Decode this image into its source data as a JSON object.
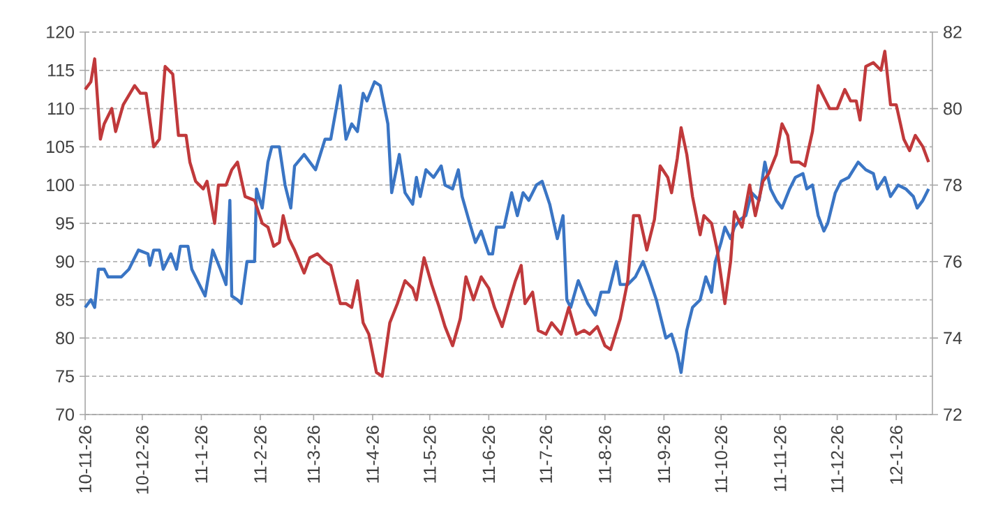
{
  "chart_data": {
    "type": "line",
    "grid": "y",
    "line_style": "solid",
    "xlim": [
      "2010-11-26",
      "2012-02-14"
    ],
    "xticks": [
      {
        "value": "2010-11-26",
        "label": "10-11-26"
      },
      {
        "value": "2010-12-26",
        "label": "10-12-26"
      },
      {
        "value": "2011-01-26",
        "label": "11-1-26"
      },
      {
        "value": "2011-02-26",
        "label": "11-2-26"
      },
      {
        "value": "2011-03-26",
        "label": "11-3-26"
      },
      {
        "value": "2011-04-26",
        "label": "11-4-26"
      },
      {
        "value": "2011-05-26",
        "label": "11-5-26"
      },
      {
        "value": "2011-06-26",
        "label": "11-6-26"
      },
      {
        "value": "2011-07-26",
        "label": "11-7-26"
      },
      {
        "value": "2011-08-26",
        "label": "11-8-26"
      },
      {
        "value": "2011-09-26",
        "label": "11-9-26"
      },
      {
        "value": "2011-10-26",
        "label": "11-10-26"
      },
      {
        "value": "2011-11-26",
        "label": "11-11-26"
      },
      {
        "value": "2011-12-26",
        "label": "11-12-26"
      },
      {
        "value": "2012-01-26",
        "label": "12-1-26"
      }
    ],
    "ylim": [
      70,
      120
    ],
    "yticks": [
      70,
      75,
      80,
      85,
      90,
      95,
      100,
      105,
      110,
      115,
      120
    ],
    "y2lim": [
      72,
      82
    ],
    "y2ticks": [
      72,
      74,
      76,
      78,
      80,
      82
    ],
    "series": [
      {
        "color": "#3a75c4",
        "x": [
          "2010-11-26",
          "2010-11-29",
          "2010-12-01",
          "2010-12-03",
          "2010-12-06",
          "2010-12-08",
          "2010-12-15",
          "2010-12-19",
          "2010-12-24",
          "2010-12-29",
          "2010-12-30",
          "2011-01-01",
          "2011-01-04",
          "2011-01-06",
          "2011-01-10",
          "2011-01-13",
          "2011-01-15",
          "2011-01-19",
          "2011-01-21",
          "2011-01-25",
          "2011-01-28",
          "2011-02-01",
          "2011-02-05",
          "2011-02-08",
          "2011-02-10",
          "2011-02-11",
          "2011-02-14",
          "2011-02-16",
          "2011-02-19",
          "2011-02-23",
          "2011-02-24",
          "2011-02-27",
          "2011-03-02",
          "2011-03-04",
          "2011-03-08",
          "2011-03-11",
          "2011-03-14",
          "2011-03-16",
          "2011-03-21",
          "2011-03-27",
          "2011-04-01",
          "2011-04-04",
          "2011-04-09",
          "2011-04-12",
          "2011-04-15",
          "2011-04-18",
          "2011-04-21",
          "2011-04-23",
          "2011-04-27",
          "2011-04-30",
          "2011-05-04",
          "2011-05-06",
          "2011-05-10",
          "2011-05-13",
          "2011-05-17",
          "2011-05-19",
          "2011-05-21",
          "2011-05-24",
          "2011-05-28",
          "2011-06-01",
          "2011-06-03",
          "2011-06-07",
          "2011-06-10",
          "2011-06-12",
          "2011-06-16",
          "2011-06-19",
          "2011-06-22",
          "2011-06-26",
          "2011-06-28",
          "2011-06-30",
          "2011-07-04",
          "2011-07-08",
          "2011-07-11",
          "2011-07-14",
          "2011-07-17",
          "2011-07-21",
          "2011-07-24",
          "2011-07-28",
          "2011-08-01",
          "2011-08-04",
          "2011-08-06",
          "2011-08-08",
          "2011-08-12",
          "2011-08-17",
          "2011-08-21",
          "2011-08-24",
          "2011-08-28",
          "2011-09-01",
          "2011-09-03",
          "2011-09-07",
          "2011-09-11",
          "2011-09-15",
          "2011-09-18",
          "2011-09-22",
          "2011-09-24",
          "2011-09-27",
          "2011-09-30",
          "2011-10-03",
          "2011-10-05",
          "2011-10-08",
          "2011-10-11",
          "2011-10-15",
          "2011-10-18",
          "2011-10-21",
          "2011-10-23",
          "2011-10-26",
          "2011-10-28",
          "2011-10-31",
          "2011-11-02",
          "2011-11-05",
          "2011-11-08",
          "2011-11-11",
          "2011-11-15",
          "2011-11-18",
          "2011-11-21",
          "2011-11-24",
          "2011-11-27",
          "2011-12-01",
          "2011-12-04",
          "2011-12-08",
          "2011-12-10",
          "2011-12-13",
          "2011-12-16",
          "2011-12-19",
          "2011-12-21",
          "2011-12-25",
          "2011-12-28",
          "2012-01-01",
          "2012-01-06",
          "2012-01-10",
          "2012-01-14",
          "2012-01-16",
          "2012-01-20",
          "2012-01-23",
          "2012-01-27",
          "2012-01-31",
          "2012-02-04",
          "2012-02-06",
          "2012-02-09",
          "2012-02-12"
        ],
        "values": [
          84,
          85,
          84,
          89,
          89,
          88,
          88,
          89,
          91.5,
          91,
          89.5,
          91.5,
          91.5,
          89,
          91,
          89,
          92,
          92,
          89,
          87,
          85.5,
          91.5,
          89,
          87,
          98,
          85.5,
          85,
          84.5,
          90,
          90,
          99.5,
          97,
          103,
          105,
          105,
          100,
          97,
          102.5,
          104,
          102,
          106,
          106,
          113,
          106,
          108,
          107,
          112,
          111,
          113.5,
          113,
          108,
          99,
          104,
          99,
          97.5,
          101,
          98.5,
          102,
          101,
          102.5,
          100,
          99.5,
          102,
          98.5,
          95,
          92.5,
          94,
          91,
          91,
          94.5,
          94.5,
          99,
          96,
          99,
          98,
          100,
          100.5,
          97.5,
          93,
          96,
          85,
          84,
          87.5,
          84.5,
          83,
          86,
          86,
          90,
          87,
          87,
          88,
          90,
          88,
          85,
          83,
          80,
          80.5,
          78,
          75.5,
          81,
          84,
          85,
          88,
          86,
          90,
          92.5,
          94.5,
          93,
          94.5,
          95.5,
          96,
          99,
          98,
          103,
          99.5,
          98,
          97,
          99.5,
          101,
          101.5,
          99.5,
          100,
          96,
          94,
          95,
          99,
          100.5,
          101,
          103,
          102,
          101.5,
          99.5,
          101,
          98.5,
          100,
          99.5,
          98.5,
          97,
          98,
          99.5
        ]
      },
      {
        "color": "#c0393b",
        "axis": "y2",
        "x": [
          "2010-11-26",
          "2010-11-29",
          "2010-12-01",
          "2010-12-04",
          "2010-12-06",
          "2010-12-10",
          "2010-12-12",
          "2010-12-16",
          "2010-12-22",
          "2010-12-25",
          "2010-12-28",
          "2011-01-01",
          "2011-01-04",
          "2011-01-07",
          "2011-01-11",
          "2011-01-14",
          "2011-01-18",
          "2011-01-20",
          "2011-01-23",
          "2011-01-27",
          "2011-01-29",
          "2011-02-02",
          "2011-02-04",
          "2011-02-08",
          "2011-02-11",
          "2011-02-14",
          "2011-02-18",
          "2011-02-23",
          "2011-02-27",
          "2011-03-02",
          "2011-03-05",
          "2011-03-08",
          "2011-03-10",
          "2011-03-13",
          "2011-03-16",
          "2011-03-21",
          "2011-03-24",
          "2011-03-28",
          "2011-04-01",
          "2011-04-04",
          "2011-04-09",
          "2011-04-12",
          "2011-04-15",
          "2011-04-18",
          "2011-04-21",
          "2011-04-24",
          "2011-04-28",
          "2011-05-01",
          "2011-05-05",
          "2011-05-09",
          "2011-05-13",
          "2011-05-17",
          "2011-05-19",
          "2011-05-23",
          "2011-05-27",
          "2011-05-31",
          "2011-06-03",
          "2011-06-07",
          "2011-06-11",
          "2011-06-14",
          "2011-06-18",
          "2011-06-22",
          "2011-06-26",
          "2011-06-29",
          "2011-07-03",
          "2011-07-07",
          "2011-07-10",
          "2011-07-13",
          "2011-07-15",
          "2011-07-19",
          "2011-07-22",
          "2011-07-26",
          "2011-07-29",
          "2011-08-03",
          "2011-08-07",
          "2011-08-11",
          "2011-08-15",
          "2011-08-18",
          "2011-08-22",
          "2011-08-26",
          "2011-08-29",
          "2011-09-03",
          "2011-09-07",
          "2011-09-10",
          "2011-09-13",
          "2011-09-17",
          "2011-09-21",
          "2011-09-24",
          "2011-09-28",
          "2011-09-30",
          "2011-10-03",
          "2011-10-05",
          "2011-10-08",
          "2011-10-11",
          "2011-10-15",
          "2011-10-17",
          "2011-10-21",
          "2011-10-24",
          "2011-10-28",
          "2011-10-31",
          "2011-11-02",
          "2011-11-06",
          "2011-11-10",
          "2011-11-13",
          "2011-11-17",
          "2011-11-20",
          "2011-11-24",
          "2011-11-27",
          "2011-11-30",
          "2011-12-02",
          "2011-12-06",
          "2011-12-09",
          "2011-12-13",
          "2011-12-16",
          "2011-12-20",
          "2011-12-22",
          "2011-12-26",
          "2011-12-30",
          "2012-01-02",
          "2012-01-05",
          "2012-01-07",
          "2012-01-10",
          "2012-01-14",
          "2012-01-18",
          "2012-01-20",
          "2012-01-23",
          "2012-01-26",
          "2012-01-30",
          "2012-02-02",
          "2012-02-05",
          "2012-02-09",
          "2012-02-12"
        ],
        "values": [
          80.5,
          80.7,
          81.3,
          79.2,
          79.6,
          80.0,
          79.4,
          80.1,
          80.6,
          80.4,
          80.4,
          79.0,
          79.2,
          81.1,
          80.9,
          79.3,
          79.3,
          78.6,
          78.1,
          77.9,
          78.1,
          77.0,
          78.0,
          78.0,
          78.4,
          78.6,
          77.7,
          77.6,
          77.0,
          76.9,
          76.4,
          76.5,
          77.2,
          76.6,
          76.3,
          75.7,
          76.1,
          76.2,
          76.0,
          75.9,
          74.9,
          74.9,
          74.8,
          75.5,
          74.4,
          74.1,
          73.1,
          73.0,
          74.4,
          74.9,
          75.5,
          75.3,
          75.0,
          76.1,
          75.4,
          74.8,
          74.3,
          73.8,
          74.5,
          75.6,
          75.0,
          75.6,
          75.3,
          74.8,
          74.3,
          75.0,
          75.5,
          75.9,
          74.9,
          75.2,
          74.2,
          74.1,
          74.4,
          74.1,
          74.8,
          74.1,
          74.2,
          74.1,
          74.3,
          73.8,
          73.7,
          74.5,
          75.5,
          77.2,
          77.2,
          76.3,
          77.1,
          78.5,
          78.2,
          77.8,
          78.7,
          79.5,
          78.8,
          77.7,
          76.7,
          77.2,
          77.0,
          76.3,
          74.9,
          76.0,
          77.3,
          76.9,
          78.0,
          77.2,
          78.1,
          78.3,
          78.8,
          79.6,
          79.3,
          78.6,
          78.6,
          78.5,
          79.4,
          80.6,
          80.2,
          80.0,
          80.0,
          80.5,
          80.2,
          80.2,
          79.7,
          81.1,
          81.2,
          81.0,
          81.5,
          80.1,
          80.1,
          79.2,
          78.9,
          79.3,
          79.0,
          78.6
        ]
      }
    ]
  }
}
